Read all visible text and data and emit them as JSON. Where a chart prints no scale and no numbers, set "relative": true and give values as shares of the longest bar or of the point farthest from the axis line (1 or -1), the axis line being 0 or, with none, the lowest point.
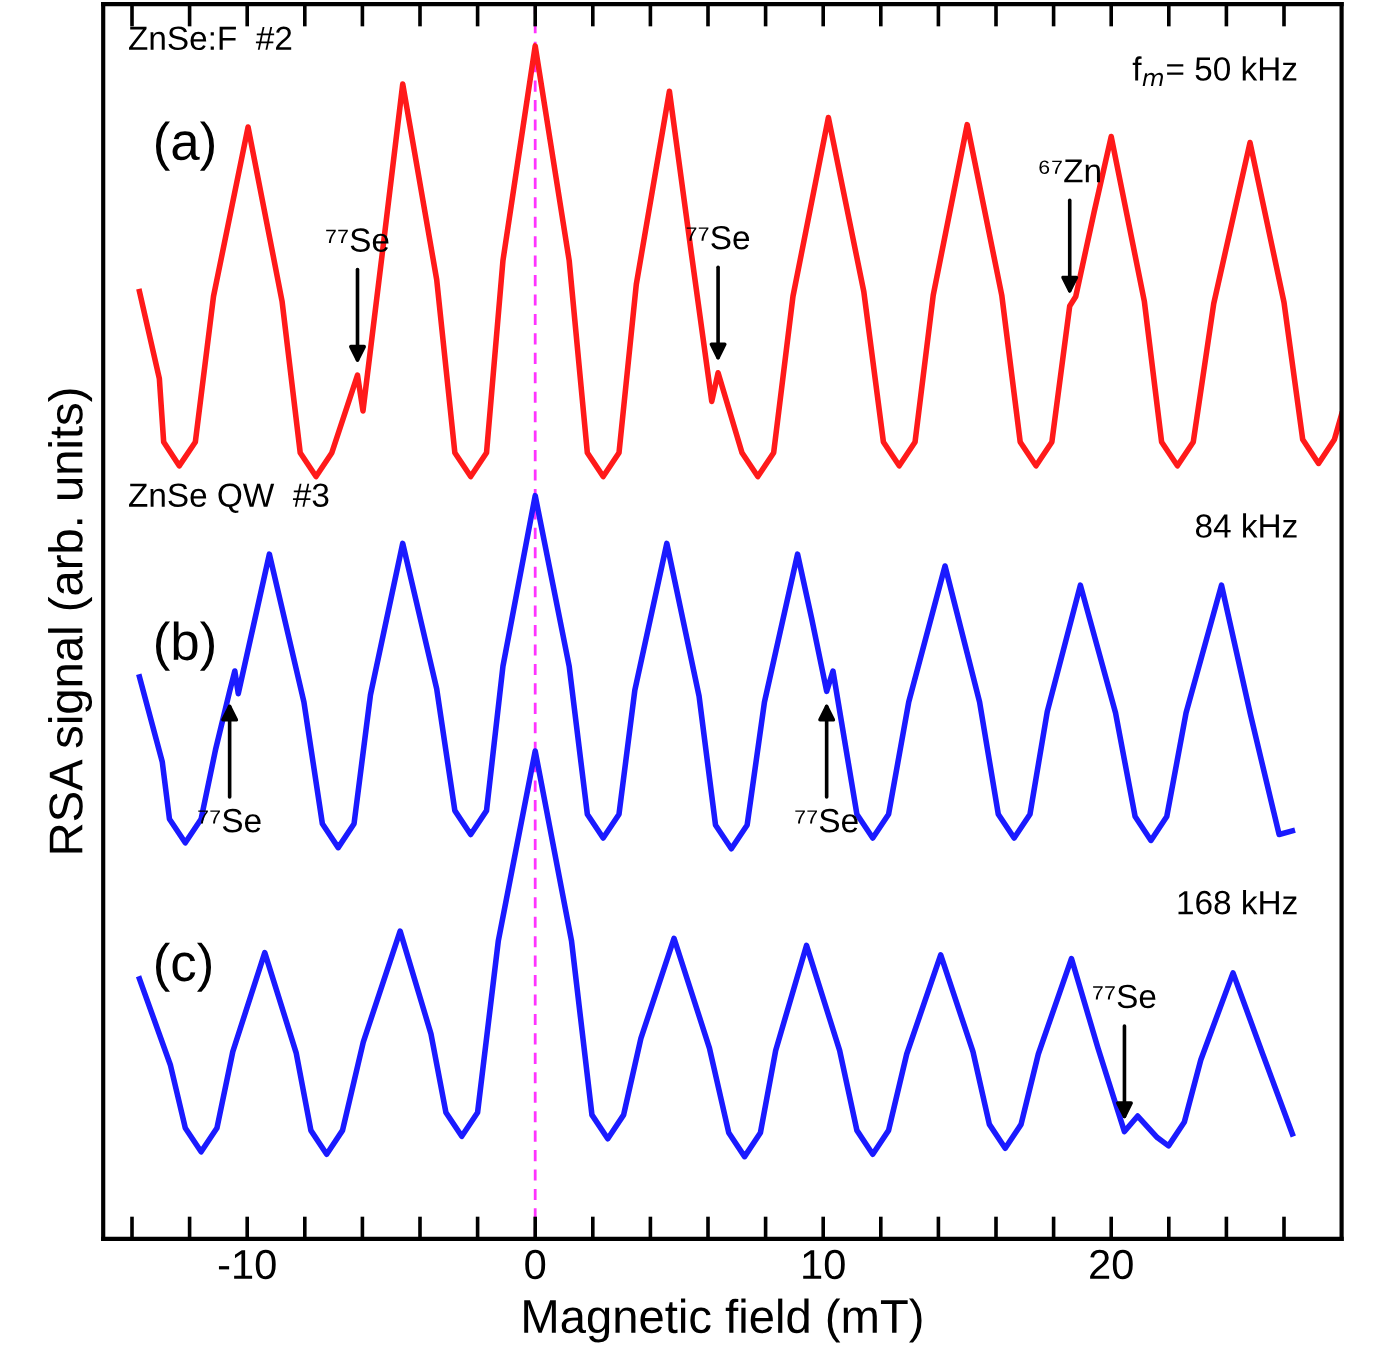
{
  "chart_data": {
    "type": "line",
    "relative": true,
    "xlabel": "Magnetic field (mT)",
    "ylabel": "RSA signal (arb. units)",
    "xlim": [
      -15,
      28
    ],
    "xticks": [
      {
        "value": -14,
        "label": null
      },
      {
        "value": -12,
        "label": null
      },
      -10,
      {
        "value": -8,
        "label": null
      },
      {
        "value": -6,
        "label": null
      },
      {
        "value": -4,
        "label": null
      },
      {
        "value": -2,
        "label": null
      },
      0,
      {
        "value": 2,
        "label": null
      },
      {
        "value": 4,
        "label": null
      },
      {
        "value": 6,
        "label": null
      },
      {
        "value": 8,
        "label": null
      },
      10,
      {
        "value": 12,
        "label": null
      },
      {
        "value": 14,
        "label": null
      },
      {
        "value": 16,
        "label": null
      },
      {
        "value": 18,
        "label": null
      },
      20,
      {
        "value": 22,
        "label": null
      },
      {
        "value": 24,
        "label": null
      },
      {
        "value": 26,
        "label": null
      }
    ],
    "grid": false,
    "legend": false,
    "marker": "none",
    "line_style": "solid",
    "ref_lines": [
      {
        "axis": "x",
        "value": 0,
        "color": "#ff33ff",
        "line_style": "dashed"
      }
    ],
    "series": [
      {
        "color": "#ff1a1a",
        "x": [
          -13.74,
          -13.05,
          -12.9,
          -12.36,
          -11.8,
          -11.17,
          -9.97,
          -8.79,
          -8.16,
          -7.61,
          -7.06,
          -6.17,
          -5.98,
          -5.29,
          -4.6,
          -3.42,
          -2.79,
          -2.24,
          -1.69,
          -1.12,
          0,
          1.18,
          1.81,
          2.36,
          2.91,
          3.51,
          4.66,
          5.4,
          6.13,
          6.35,
          7.18,
          7.73,
          8.28,
          8.95,
          10.18,
          11.41,
          12.09,
          12.64,
          13.19,
          13.82,
          15.0,
          16.2,
          16.84,
          17.39,
          17.94,
          18.56,
          18.77,
          19.4,
          20.0,
          21.15,
          21.75,
          22.3,
          22.85,
          23.56,
          24.82,
          26.0,
          26.65,
          27.2,
          27.75,
          28.0
        ],
        "values": [
          0.794,
          0.721,
          0.668,
          0.648,
          0.668,
          0.79,
          0.932,
          0.786,
          0.659,
          0.639,
          0.659,
          0.724,
          0.694,
          0.83,
          0.968,
          0.804,
          0.659,
          0.639,
          0.659,
          0.82,
          1.0,
          0.82,
          0.659,
          0.639,
          0.659,
          0.8,
          0.962,
          0.83,
          0.702,
          0.726,
          0.659,
          0.639,
          0.659,
          0.79,
          0.94,
          0.794,
          0.668,
          0.648,
          0.668,
          0.791,
          0.934,
          0.791,
          0.668,
          0.648,
          0.668,
          0.782,
          0.79,
          0.86,
          0.924,
          0.786,
          0.668,
          0.648,
          0.668,
          0.784,
          0.919,
          0.785,
          0.67,
          0.65,
          0.67,
          0.691
        ]
      },
      {
        "color": "#1a1aff",
        "x": [
          -13.74,
          -12.95,
          -12.7,
          -12.15,
          -11.6,
          -11.1,
          -10.61,
          -10.43,
          -10.31,
          -9.23,
          -8.03,
          -7.39,
          -6.84,
          -6.29,
          -5.72,
          -4.6,
          -3.42,
          -2.79,
          -2.24,
          -1.69,
          -1.12,
          0,
          1.18,
          1.81,
          2.36,
          2.91,
          3.46,
          4.57,
          5.69,
          6.26,
          6.81,
          7.36,
          7.96,
          9.11,
          9.6,
          10.12,
          10.34,
          11.17,
          11.72,
          12.27,
          12.97,
          14.23,
          15.43,
          16.08,
          16.63,
          17.18,
          17.78,
          18.93,
          20.15,
          20.83,
          21.38,
          21.93,
          22.6,
          23.83,
          24.83,
          25.83,
          26.29
        ],
        "values": [
          0.471,
          0.4,
          0.352,
          0.332,
          0.352,
          0.41,
          0.459,
          0.476,
          0.457,
          0.574,
          0.45,
          0.348,
          0.328,
          0.348,
          0.456,
          0.583,
          0.461,
          0.359,
          0.339,
          0.359,
          0.48,
          0.623,
          0.48,
          0.356,
          0.336,
          0.356,
          0.46,
          0.583,
          0.455,
          0.347,
          0.327,
          0.347,
          0.45,
          0.574,
          0.52,
          0.459,
          0.476,
          0.356,
          0.336,
          0.356,
          0.45,
          0.564,
          0.45,
          0.356,
          0.336,
          0.356,
          0.442,
          0.548,
          0.441,
          0.354,
          0.334,
          0.354,
          0.441,
          0.548,
          0.44,
          0.339,
          0.342
        ]
      },
      {
        "color": "#1a1aff",
        "x": [
          -13.74,
          -12.67,
          -12.15,
          -11.6,
          -11.05,
          -10.5,
          -9.39,
          -8.3,
          -7.79,
          -7.24,
          -6.69,
          -5.97,
          -4.69,
          -3.62,
          -3.1,
          -2.55,
          -2.0,
          -1.28,
          0,
          1.26,
          1.97,
          2.52,
          3.07,
          3.67,
          4.82,
          6.05,
          6.72,
          7.27,
          7.82,
          8.35,
          9.42,
          10.57,
          11.17,
          11.72,
          12.27,
          12.9,
          14.08,
          15.2,
          15.77,
          16.32,
          16.87,
          17.47,
          18.62,
          19.54,
          20.46,
          20.92,
          21.6,
          21.99,
          22.54,
          23.11,
          24.23,
          25.26,
          26.29
        ],
        "values": [
          0.218,
          0.146,
          0.093,
          0.073,
          0.093,
          0.157,
          0.24,
          0.156,
          0.091,
          0.071,
          0.091,
          0.165,
          0.258,
          0.172,
          0.106,
          0.086,
          0.106,
          0.25,
          0.409,
          0.25,
          0.104,
          0.084,
          0.104,
          0.168,
          0.252,
          0.16,
          0.089,
          0.069,
          0.089,
          0.158,
          0.246,
          0.158,
          0.091,
          0.071,
          0.091,
          0.155,
          0.238,
          0.157,
          0.096,
          0.076,
          0.096,
          0.155,
          0.235,
          0.16,
          0.09,
          0.103,
          0.085,
          0.078,
          0.098,
          0.15,
          0.223,
          0.155,
          0.088
        ]
      }
    ],
    "annotations": [
      "ZnSe:F  #2",
      "f$_{m}$= 50 kHz",
      "(a)",
      "ZnSe QW  #3",
      "84 kHz",
      "(b)",
      "(c)",
      "168 kHz",
      {
        "text": "⁷⁷Se",
        "x": -6.17,
        "y": 0.724
      },
      {
        "text": "⁷⁷Se",
        "x": 6.35,
        "y": 0.726
      },
      {
        "text": "⁶⁷Zn",
        "x": 18.56,
        "y": 0.782
      },
      {
        "text": "⁷⁷Se",
        "x": -10.61,
        "y": 0.459
      },
      {
        "text": "⁷⁷Se",
        "x": 10.12,
        "y": 0.459
      },
      {
        "text": "⁷⁷Se",
        "x": 20.46,
        "y": 0.09
      }
    ]
  }
}
